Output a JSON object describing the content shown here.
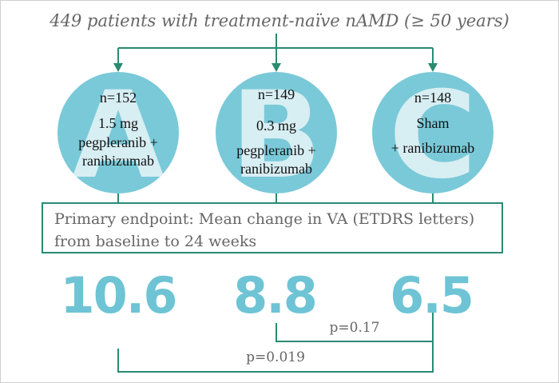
{
  "title": "449 patients with treatment-naïve nAMD (≥ 50 years)",
  "arms": [
    {
      "letter": "A",
      "n": "n=152",
      "line1": "1.5 mg",
      "line2": "pegpleranib +",
      "line3": "ranibizumab",
      "result": "10.6"
    },
    {
      "letter": "B",
      "n": "n=149",
      "line1": "0.3 mg",
      "line2": "pegpleranib +",
      "line3": "ranibizumab",
      "result": "8.8"
    },
    {
      "letter": "C",
      "n": "n=148",
      "line1": "Sham",
      "line2": "+ ranibizumab",
      "line3": "",
      "result": "6.5"
    }
  ],
  "endpoint": {
    "line1": "Primary endpoint: Mean change in VA (ETDRS letters)",
    "line2": "from baseline to 24 weeks"
  },
  "comparisons": [
    {
      "label": "p=0.17",
      "between": [
        "B",
        "C"
      ]
    },
    {
      "label": "p=0.019",
      "between": [
        "A",
        "C"
      ]
    }
  ],
  "colors": {
    "circle": "#7ac9d8",
    "letter": "#d7eef3",
    "line": "#2a8a72",
    "value": "#6ec4d4",
    "text": "#666666"
  }
}
